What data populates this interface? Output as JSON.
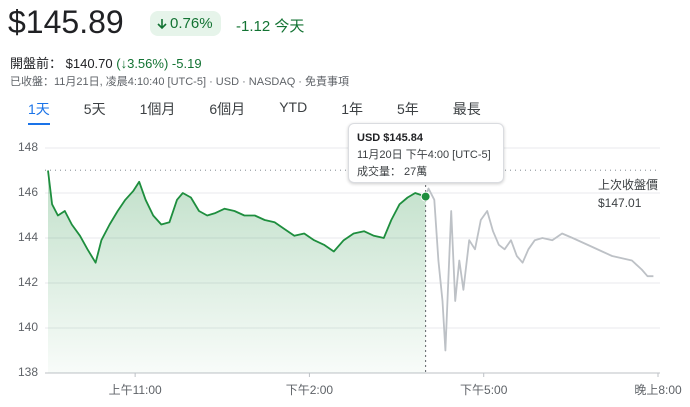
{
  "header": {
    "price": "$145.89",
    "change_pct": "0.76%",
    "change_abs": "-1.12",
    "change_period": "今天",
    "premarket_label": "開盤前：",
    "premarket_price": "$140.70",
    "premarket_change_pct": "(↓3.56%)",
    "premarket_change_abs": "-5.19",
    "status": "已收盤：11月21日, 凌晨4:10:40 [UTC-5] · USD · NASDAQ · 免責事項"
  },
  "tabs": {
    "items": [
      "1天",
      "5天",
      "1個月",
      "6個月",
      "YTD",
      "1年",
      "5年",
      "最長"
    ],
    "selected": 0
  },
  "chart_data": {
    "type": "line",
    "xlim": [
      9.5,
      20
    ],
    "xticks": [
      {
        "value": 11,
        "label": "上午11:00"
      },
      {
        "value": 14,
        "label": "下午2:00"
      },
      {
        "value": 17,
        "label": "下午5:00"
      },
      {
        "value": 20,
        "label": "晚上8:00"
      }
    ],
    "ylim": [
      138,
      148
    ],
    "yticks": [
      138,
      140,
      142,
      144,
      146,
      148
    ],
    "grid": true,
    "series": [
      {
        "color": "#1e8e3e",
        "area": true,
        "x": [
          9.5,
          9.57,
          9.67,
          9.79,
          9.91,
          10.05,
          10.18,
          10.32,
          10.42,
          10.56,
          10.7,
          10.83,
          10.97,
          11.07,
          11.18,
          11.31,
          11.45,
          11.59,
          11.72,
          11.82,
          11.96,
          12.1,
          12.24,
          12.37,
          12.54,
          12.71,
          12.88,
          13.06,
          13.23,
          13.4,
          13.57,
          13.74,
          13.91,
          14.08,
          14.25,
          14.42,
          14.59,
          14.76,
          14.94,
          15.11,
          15.28,
          15.41,
          15.55,
          15.69,
          15.82,
          16.0
        ],
        "values": [
          147.0,
          145.5,
          145.0,
          145.2,
          144.6,
          144.1,
          143.5,
          142.9,
          143.9,
          144.6,
          145.2,
          145.7,
          146.1,
          146.5,
          145.7,
          145.0,
          144.6,
          144.7,
          145.7,
          146.0,
          145.8,
          145.2,
          145.0,
          145.1,
          145.3,
          145.2,
          145.0,
          145.0,
          144.8,
          144.7,
          144.4,
          144.1,
          144.2,
          143.9,
          143.7,
          143.4,
          143.9,
          144.2,
          144.3,
          144.1,
          144.0,
          144.8,
          145.5,
          145.8,
          146.0,
          145.84
        ]
      },
      {
        "color": "#bdc1c6",
        "area": false,
        "x": [
          16.0,
          16.05,
          16.15,
          16.22,
          16.29,
          16.34,
          16.39,
          16.44,
          16.51,
          16.58,
          16.65,
          16.75,
          16.85,
          16.95,
          17.06,
          17.16,
          17.26,
          17.36,
          17.47,
          17.57,
          17.67,
          17.77,
          17.88,
          18.01,
          18.18,
          18.35,
          18.53,
          18.7,
          18.87,
          19.04,
          19.21,
          19.38,
          19.55,
          19.72,
          19.82,
          19.92
        ],
        "values": [
          145.84,
          146.2,
          145.7,
          143.0,
          141.2,
          139.0,
          142.1,
          145.2,
          141.2,
          143.0,
          141.7,
          143.9,
          143.5,
          144.8,
          145.2,
          144.3,
          143.7,
          143.5,
          143.9,
          143.2,
          142.9,
          143.5,
          143.9,
          144.0,
          143.9,
          144.2,
          144.0,
          143.8,
          143.6,
          143.4,
          143.2,
          143.1,
          143.0,
          142.6,
          142.3,
          142.3
        ]
      }
    ],
    "reference_line": {
      "value": 147.01,
      "label": "上次收盤價",
      "value_label": "$147.01"
    },
    "tooltip": {
      "x": 16.0,
      "value": 145.84,
      "label": "USD $145.84",
      "time": "11月20日 下午4:00 [UTC-5]",
      "volume": "成交量： 27萬"
    }
  }
}
